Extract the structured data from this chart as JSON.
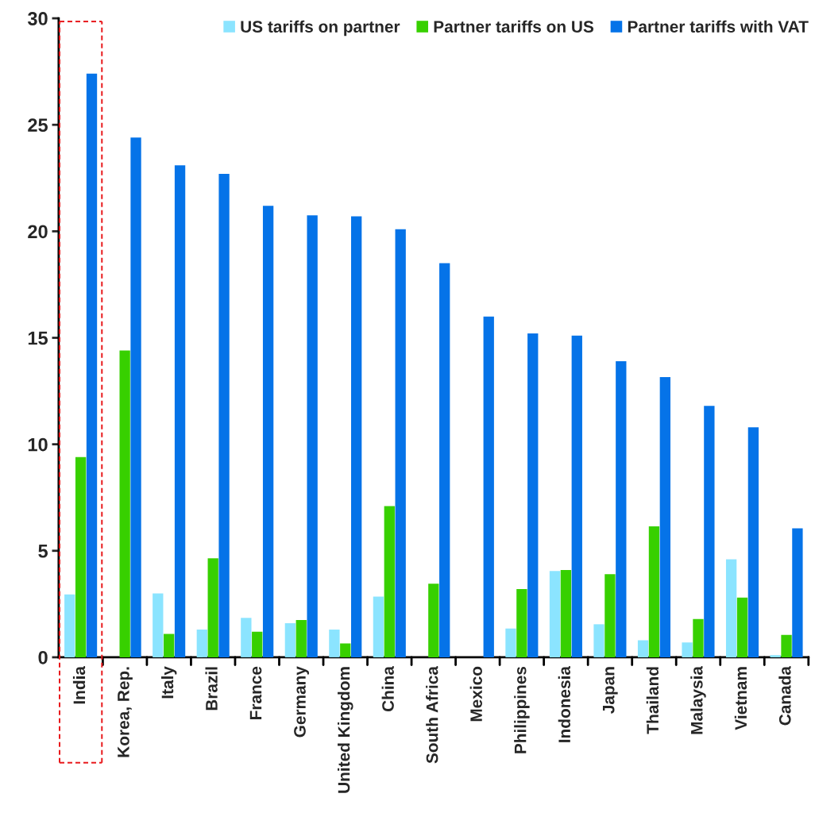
{
  "chart_data": {
    "type": "bar",
    "categories": [
      "India",
      "Korea, Rep.",
      "Italy",
      "Brazil",
      "France",
      "Germany",
      "United Kingdom",
      "China",
      "South Africa",
      "Mexico",
      "Philippines",
      "Indonesia",
      "Japan",
      "Thailand",
      "Malaysia",
      "Vietnam",
      "Canada"
    ],
    "series": [
      {
        "name": "US tariffs on partner",
        "color": "#8be4ff",
        "values": [
          2.95,
          0,
          3.0,
          1.3,
          1.85,
          1.6,
          1.3,
          2.85,
          0,
          0,
          1.35,
          4.05,
          1.55,
          0.8,
          0.7,
          4.6,
          0.1
        ]
      },
      {
        "name": "Partner tariffs on US",
        "color": "#37d000",
        "values": [
          9.4,
          14.4,
          1.1,
          4.65,
          1.2,
          1.75,
          0.65,
          7.1,
          3.45,
          0,
          3.2,
          4.1,
          3.9,
          6.15,
          1.8,
          2.8,
          1.05
        ]
      },
      {
        "name": "Partner tariffs with VAT",
        "color": "#0573e8",
        "values": [
          27.4,
          24.4,
          23.1,
          22.7,
          21.2,
          20.75,
          20.7,
          20.1,
          18.5,
          16.0,
          15.2,
          15.1,
          13.9,
          13.15,
          11.8,
          10.8,
          6.05
        ]
      }
    ],
    "ylim": [
      0,
      30
    ],
    "yticks": [
      0,
      5,
      10,
      15,
      20,
      25,
      30
    ],
    "grid": false,
    "legend": "top right"
  }
}
